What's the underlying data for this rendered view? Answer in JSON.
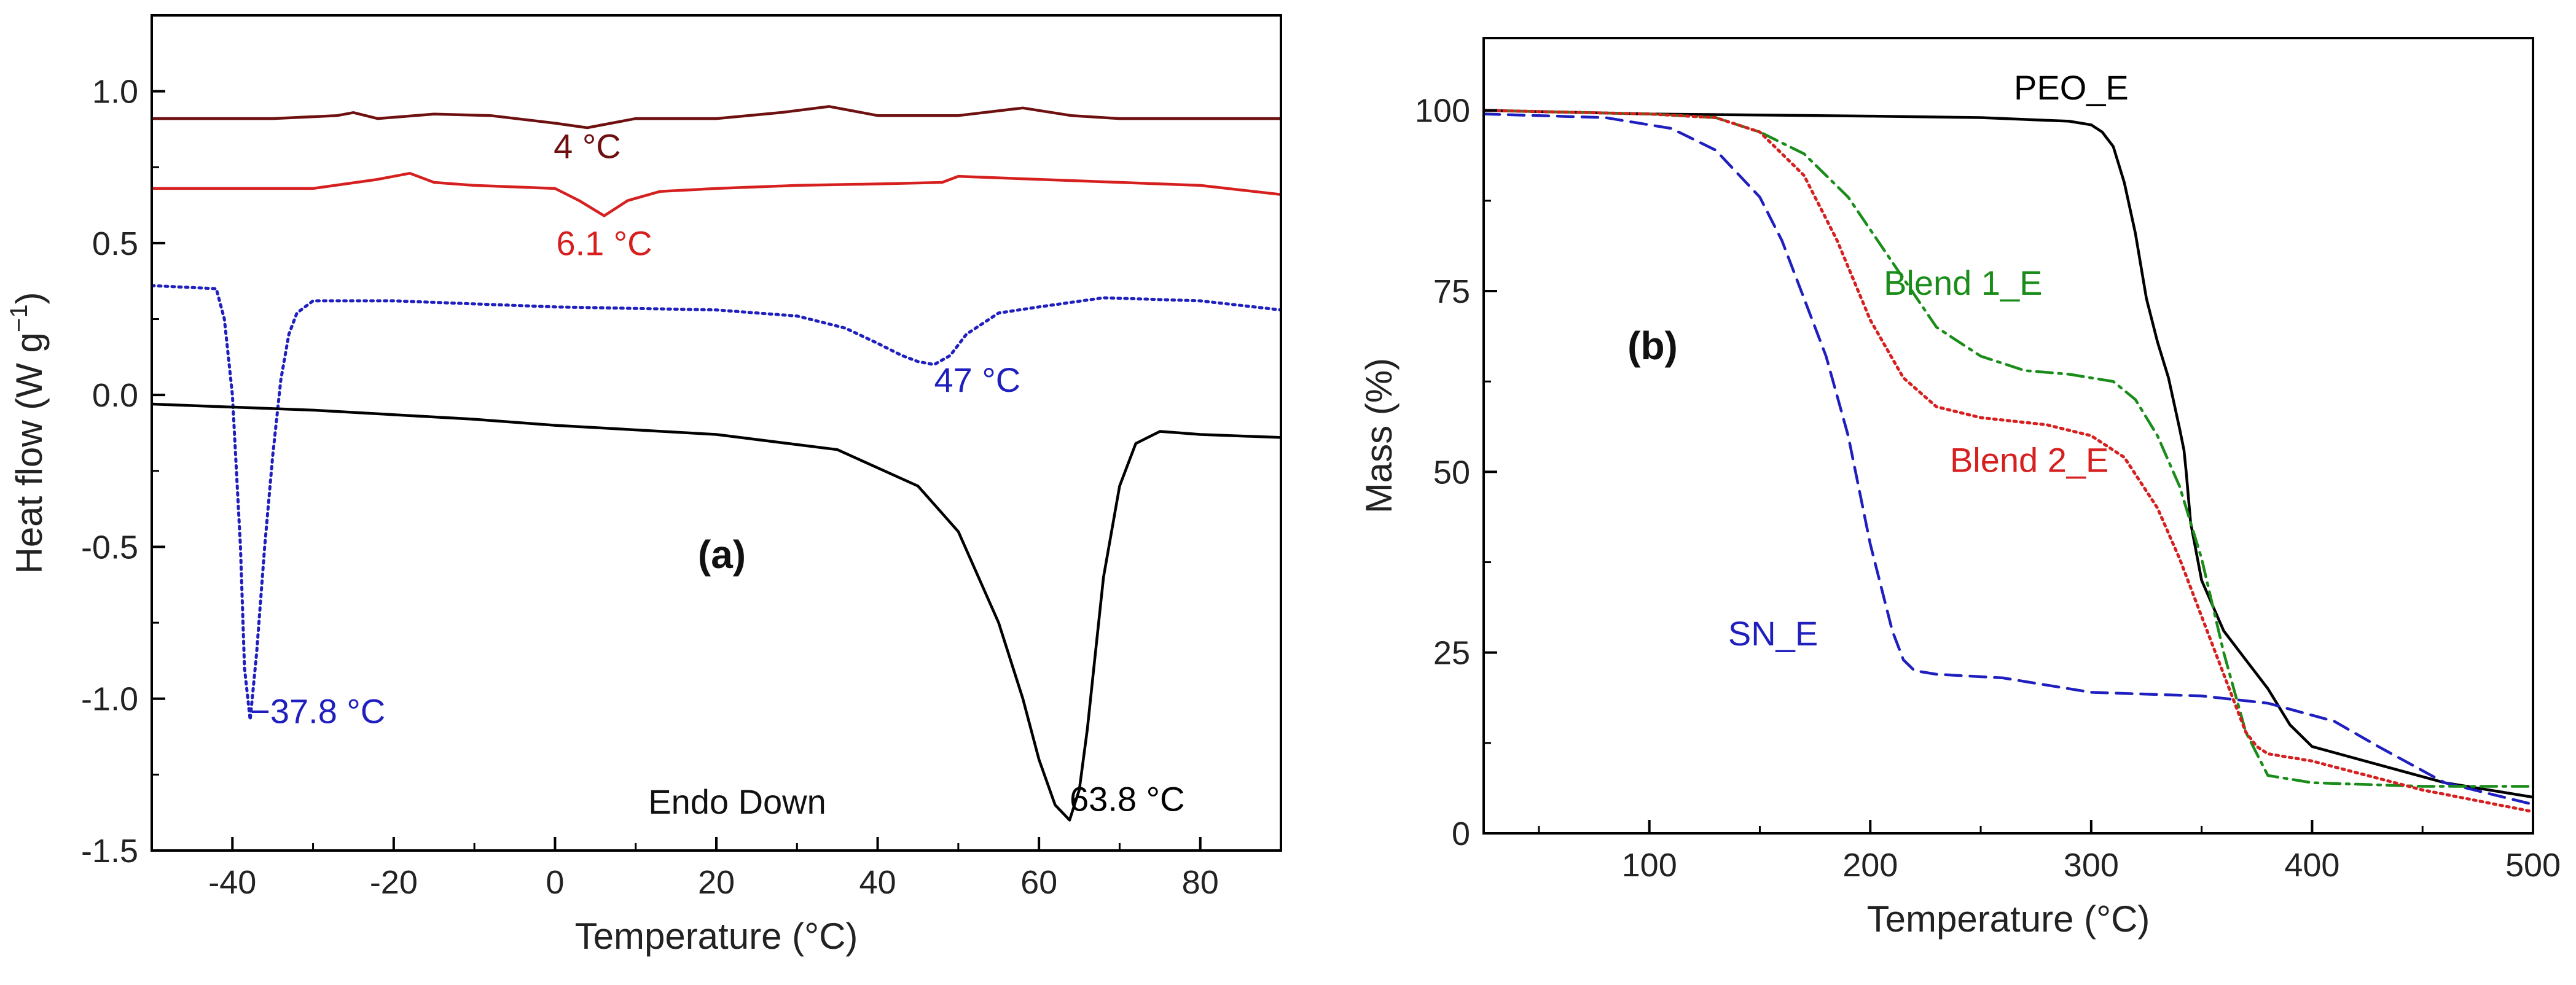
{
  "colors": {
    "peo": "#000000",
    "sn": "#1f1fbf",
    "blend1_dsc": "#d62020",
    "blend2_dsc": "#6e1010",
    "blend1_tga": "#1a8c1a",
    "blend2_tga": "#d62020"
  },
  "chart_data": [
    {
      "type": "line",
      "panel": "(a)",
      "xlabel": "Temperature (°C)",
      "ylabel_main": "Heat flow (W g",
      "ylabel_sup": "−1",
      "ylabel_end": ")",
      "xlim": [
        -50,
        90
      ],
      "ylim": [
        -1.5,
        1.25
      ],
      "xticks": [
        -40,
        -20,
        0,
        20,
        40,
        60,
        80
      ],
      "xtick_labels": [
        "-40",
        "-20",
        "0",
        "20",
        "40",
        "60",
        "80"
      ],
      "yticks": [
        -1.5,
        -1.0,
        -0.5,
        0.0,
        0.5,
        1.0
      ],
      "ytick_labels": [
        "-1.5",
        "-1.0",
        "-0.5",
        "0.0",
        "0.5",
        "1.0"
      ],
      "grid": false,
      "note": "Endo Down",
      "series": [
        {
          "name": "Blend 2_E",
          "color_key": "blend2_dsc",
          "dash": "solid",
          "x": [
            -50,
            -35,
            -27,
            -25,
            -22,
            -15,
            -8,
            0,
            4,
            10,
            20,
            28,
            34,
            40,
            50,
            58,
            64,
            70,
            80,
            90
          ],
          "y": [
            0.91,
            0.91,
            0.92,
            0.93,
            0.91,
            0.925,
            0.92,
            0.895,
            0.88,
            0.91,
            0.91,
            0.93,
            0.95,
            0.92,
            0.92,
            0.945,
            0.92,
            0.91,
            0.91,
            0.91
          ]
        },
        {
          "name": "Blend 1_E",
          "color_key": "blend1_dsc",
          "dash": "solid",
          "x": [
            -50,
            -30,
            -22,
            -18,
            -15,
            -10,
            0,
            3,
            6.1,
            9,
            13,
            20,
            30,
            40,
            48,
            50,
            60,
            70,
            80,
            90
          ],
          "y": [
            0.68,
            0.68,
            0.71,
            0.73,
            0.7,
            0.69,
            0.68,
            0.64,
            0.59,
            0.64,
            0.67,
            0.68,
            0.69,
            0.695,
            0.7,
            0.72,
            0.71,
            0.7,
            0.69,
            0.66
          ]
        },
        {
          "name": "SN_E",
          "color_key": "sn",
          "dash": "dotted",
          "x": [
            -50,
            -42,
            -41,
            -40,
            -39,
            -38.5,
            -37.8,
            -37,
            -36,
            -35,
            -34,
            -33,
            -32,
            -30,
            -20,
            0,
            20,
            30,
            36,
            40,
            43,
            45,
            47,
            49,
            51,
            55,
            60,
            68,
            80,
            90
          ],
          "y": [
            0.36,
            0.35,
            0.25,
            0.0,
            -0.5,
            -0.9,
            -1.07,
            -0.85,
            -0.5,
            -0.2,
            0.05,
            0.2,
            0.27,
            0.31,
            0.31,
            0.29,
            0.28,
            0.26,
            0.22,
            0.17,
            0.13,
            0.11,
            0.1,
            0.13,
            0.2,
            0.27,
            0.29,
            0.32,
            0.31,
            0.28
          ]
        },
        {
          "name": "PEO_E",
          "color_key": "peo",
          "dash": "solid",
          "x": [
            -50,
            -30,
            -10,
            0,
            20,
            35,
            45,
            50,
            55,
            58,
            60,
            62,
            63.8,
            65,
            66,
            67,
            68,
            70,
            72,
            75,
            80,
            90
          ],
          "y": [
            -0.03,
            -0.05,
            -0.08,
            -0.1,
            -0.13,
            -0.18,
            -0.3,
            -0.45,
            -0.75,
            -1.0,
            -1.2,
            -1.35,
            -1.4,
            -1.3,
            -1.1,
            -0.85,
            -0.6,
            -0.3,
            -0.16,
            -0.12,
            -0.13,
            -0.14
          ]
        }
      ],
      "annotations": [
        {
          "text": "4 °C",
          "x": 4,
          "y": 0.78,
          "color_key": "blend2_dsc",
          "anchor": "middle"
        },
        {
          "text": "6.1 °C",
          "x": 6.1,
          "y": 0.46,
          "color_key": "blend1_dsc",
          "anchor": "middle"
        },
        {
          "text": "47 °C",
          "x": 47,
          "y": 0.01,
          "color_key": "sn",
          "anchor": "start"
        },
        {
          "text": "−37.8 °C",
          "x": -37.8,
          "y": -1.08,
          "color_key": "sn",
          "anchor": "start"
        },
        {
          "text": "63.8 °C",
          "x": 63.8,
          "y": -1.37,
          "color_key": "peo",
          "anchor": "start"
        }
      ]
    },
    {
      "type": "line",
      "panel": "(b)",
      "xlabel": "Temperature (°C)",
      "ylabel": "Mass (%)",
      "xlim": [
        25,
        500
      ],
      "ylim": [
        0,
        110
      ],
      "xticks": [
        100,
        200,
        300,
        400,
        500
      ],
      "xtick_labels": [
        "100",
        "200",
        "300",
        "400",
        "500"
      ],
      "yticks": [
        0,
        25,
        50,
        75,
        100
      ],
      "ytick_labels": [
        "0",
        "25",
        "50",
        "75",
        "100"
      ],
      "grid": false,
      "series": [
        {
          "name": "PEO_E",
          "color_key": "peo",
          "dash": "solid",
          "x": [
            25,
            100,
            200,
            250,
            290,
            300,
            305,
            310,
            315,
            320,
            325,
            330,
            335,
            340,
            342,
            343,
            345,
            350,
            360,
            370,
            380,
            390,
            400,
            430,
            460,
            500
          ],
          "y": [
            100,
            99.5,
            99.2,
            99,
            98.5,
            98,
            97,
            95,
            90,
            83,
            74,
            68,
            63,
            56,
            53,
            50,
            43,
            35,
            28,
            24,
            20,
            15,
            12,
            9.5,
            7,
            5
          ]
        },
        {
          "name": "SN_E",
          "color_key": "sn",
          "dash": "dashed",
          "x": [
            25,
            80,
            110,
            130,
            150,
            160,
            170,
            180,
            190,
            200,
            210,
            215,
            220,
            230,
            260,
            280,
            300,
            350,
            380,
            410,
            430,
            460,
            500
          ],
          "y": [
            99.5,
            99,
            97.5,
            94.5,
            88,
            82,
            74,
            66,
            55,
            40,
            28,
            24,
            22.5,
            22,
            21.5,
            20.5,
            19.5,
            19,
            18,
            15.5,
            12,
            7,
            4
          ]
        },
        {
          "name": "Blend 1_E",
          "color_key": "blend1_tga",
          "dash": "dashdot",
          "x": [
            25,
            100,
            130,
            150,
            170,
            190,
            210,
            230,
            250,
            270,
            290,
            300,
            310,
            320,
            330,
            340,
            350,
            360,
            370,
            380,
            400,
            450,
            500
          ],
          "y": [
            100,
            99.5,
            99,
            97,
            94,
            88,
            79,
            70,
            66,
            64,
            63.5,
            63,
            62.5,
            60,
            55,
            48,
            38,
            25,
            14,
            8,
            7,
            6.5,
            6.5
          ]
        },
        {
          "name": "Blend 2_E",
          "color_key": "blend2_tga",
          "dash": "dotted",
          "x": [
            25,
            100,
            130,
            150,
            170,
            185,
            200,
            215,
            230,
            250,
            280,
            300,
            315,
            330,
            340,
            350,
            360,
            370,
            375,
            380,
            400,
            450,
            500
          ],
          "y": [
            100,
            99.5,
            99,
            97,
            91,
            82,
            71,
            63,
            59,
            57.5,
            56.5,
            55,
            52,
            45,
            38,
            30,
            22,
            14,
            12,
            11,
            10,
            6,
            3
          ]
        }
      ],
      "annotations": [
        {
          "text": "PEO_E",
          "x": 265,
          "y": 101.5,
          "color_key": "peo",
          "anchor": "start"
        },
        {
          "text": "Blend 1_E",
          "x": 242,
          "y": 74.5,
          "color_key": "blend1_tga",
          "anchor": "middle"
        },
        {
          "text": "Blend 2_E",
          "x": 272,
          "y": 50,
          "color_key": "blend2_tga",
          "anchor": "middle"
        },
        {
          "text": "SN_E",
          "x": 156,
          "y": 26,
          "color_key": "sn",
          "anchor": "middle"
        }
      ]
    }
  ]
}
